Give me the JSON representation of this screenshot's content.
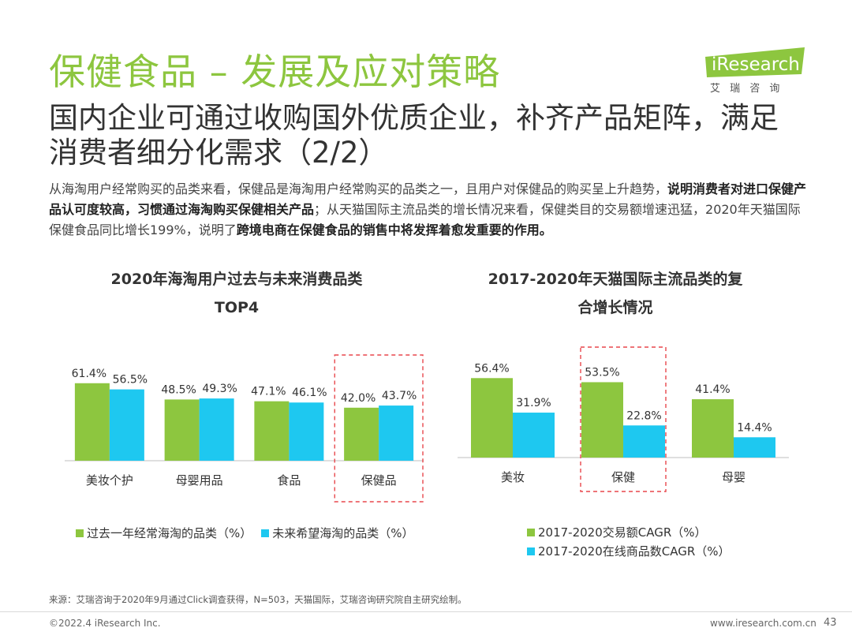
{
  "header": {
    "title": "保健食品 – 发展及应对策略",
    "subtitle": "国内企业可通过收购国外优质企业，补齐产品矩阵，满足消费者细分化需求（2/2）"
  },
  "logo": {
    "brand": "iResearch",
    "cn": "艾 瑞 咨 询"
  },
  "body": {
    "p1": "从海淘用户经常购买的品类来看，保健品是海淘用户经常购买的品类之一，且用户对保健品的购买呈上升趋势，",
    "b1": "说明消费者对进口保健产品认可度较高，习惯通过海淘购买保健相关产品",
    "p2": "；从天猫国际主流品类的增长情况来看，保健类目的交易额增速迅猛，2020年天猫国际保健食品同比增长199%，说明了",
    "b2": "跨境电商在保健食品的销售中将发挥着愈发重要的作用。"
  },
  "colors": {
    "green": "#8dc63f",
    "blue": "#1ec8f0",
    "highlight": "#e8474c",
    "title": "#8dc63f"
  },
  "chart_data": [
    {
      "type": "bar",
      "title_line1": "2020年海淘用户过去与未来消费品类",
      "title_line2": "TOP4",
      "categories": [
        "美妆个护",
        "母婴用品",
        "食品",
        "保健品"
      ],
      "series": [
        {
          "name": "过去一年经常海淘的品类（%）",
          "values": [
            61.4,
            48.5,
            47.1,
            42.0
          ],
          "labels": [
            "61.4%",
            "48.5%",
            "47.1%",
            "42.0%"
          ],
          "color": "#8dc63f"
        },
        {
          "name": "未来希望海淘的品类（%）",
          "values": [
            56.5,
            49.3,
            46.1,
            43.7
          ],
          "labels": [
            "56.5%",
            "49.3%",
            "46.1%",
            "43.7%"
          ],
          "color": "#1ec8f0"
        }
      ],
      "highlight_category": "保健品",
      "ylim": [
        0,
        70
      ]
    },
    {
      "type": "bar",
      "title_line1": "2017-2020年天猫国际主流品类的复",
      "title_line2": "合增长情况",
      "categories": [
        "美妆",
        "保健",
        "母婴"
      ],
      "series": [
        {
          "name": "2017-2020交易额CAGR（%）",
          "values": [
            56.4,
            53.5,
            41.4
          ],
          "labels": [
            "56.4%",
            "53.5%",
            "41.4%"
          ],
          "color": "#8dc63f"
        },
        {
          "name": "2017-2020在线商品数CAGR（%）",
          "values": [
            31.9,
            22.8,
            14.4
          ],
          "labels": [
            "31.9%",
            "22.8%",
            "14.4%"
          ],
          "color": "#1ec8f0"
        }
      ],
      "highlight_category": "保健",
      "ylim": [
        0,
        70
      ]
    }
  ],
  "footer": {
    "source": "来源：艾瑞咨询于2020年9月通过Click调查获得，N=503，天猫国际，艾瑞咨询研究院自主研究绘制。",
    "copyright": "©2022.4 iResearch Inc.",
    "website": "www.iresearch.com.cn",
    "page": "43"
  }
}
